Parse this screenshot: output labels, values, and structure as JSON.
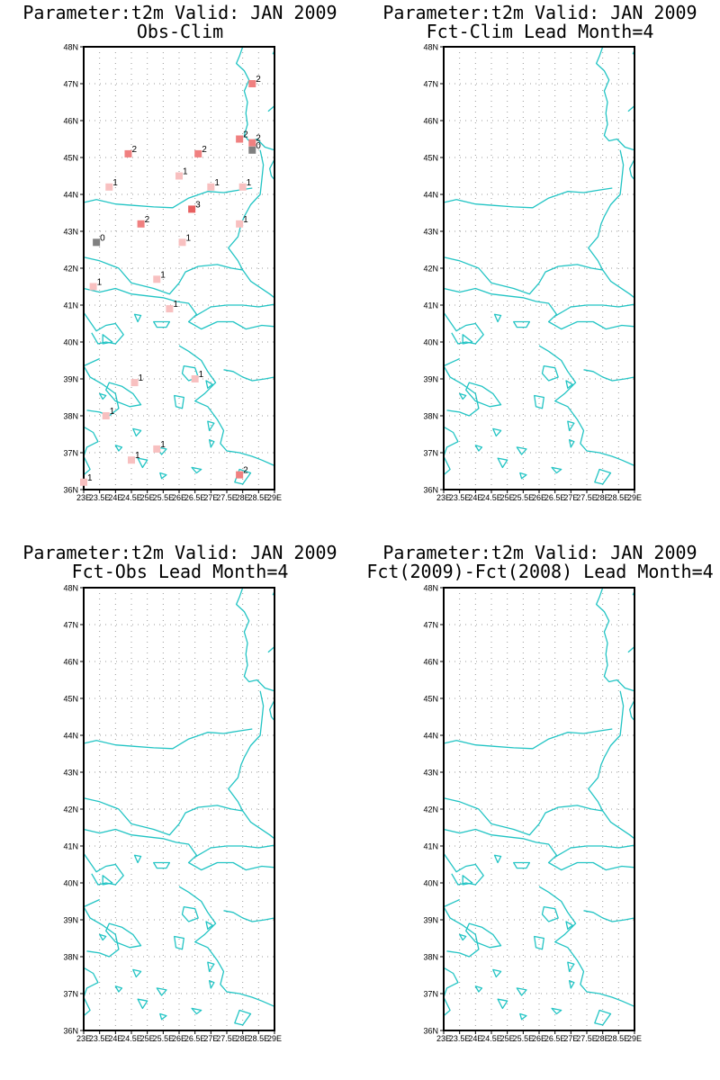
{
  "panels": [
    {
      "title_line1": "Parameter:t2m Valid: JAN 2009",
      "title_line2": "Obs-Clim"
    },
    {
      "title_line1": "Parameter:t2m Valid: JAN 2009",
      "title_line2": "Fct-Clim Lead Month=4"
    },
    {
      "title_line1": "Parameter:t2m Valid: JAN 2009",
      "title_line2": "Fct-Obs Lead Month=4"
    },
    {
      "title_line1": "Parameter:t2m Valid: JAN 2009",
      "title_line2": "Fct(2009)-Fct(2008) Lead Month=4"
    }
  ],
  "axes": {
    "lat_labels": [
      "36N",
      "37N",
      "38N",
      "39N",
      "40N",
      "41N",
      "42N",
      "43N",
      "44N",
      "45N",
      "46N",
      "47N",
      "48N"
    ],
    "lon_labels": [
      "23E",
      "23.5E",
      "24E",
      "24.5E",
      "25E",
      "25.5E",
      "26E",
      "26.5E",
      "27E",
      "27.5E",
      "28E",
      "28.5E",
      "29E"
    ],
    "lat_range": [
      36,
      48
    ],
    "lon_range": [
      23,
      29
    ]
  },
  "colors": {
    "coastline": "#22c4c4",
    "grid": "#9a9a9a",
    "zero": "#808080",
    "one": "#f8c0c0",
    "two": "#f08080",
    "three": "#e86060"
  },
  "stations": [
    {
      "lon": 28.3,
      "lat": 47.0,
      "value": "2"
    },
    {
      "lon": 27.9,
      "lat": 45.5,
      "value": "2"
    },
    {
      "lon": 28.3,
      "lat": 45.4,
      "value": "2"
    },
    {
      "lon": 28.3,
      "lat": 45.2,
      "value": "0"
    },
    {
      "lon": 24.4,
      "lat": 45.1,
      "value": "2"
    },
    {
      "lon": 26.6,
      "lat": 45.1,
      "value": "2"
    },
    {
      "lon": 26.0,
      "lat": 44.5,
      "value": "1"
    },
    {
      "lon": 23.8,
      "lat": 44.2,
      "value": "1"
    },
    {
      "lon": 27.0,
      "lat": 44.2,
      "value": "1"
    },
    {
      "lon": 28.0,
      "lat": 44.2,
      "value": "1"
    },
    {
      "lon": 26.4,
      "lat": 43.6,
      "value": "3"
    },
    {
      "lon": 24.8,
      "lat": 43.2,
      "value": "2"
    },
    {
      "lon": 27.9,
      "lat": 43.2,
      "value": "1"
    },
    {
      "lon": 23.4,
      "lat": 42.7,
      "value": "0"
    },
    {
      "lon": 26.1,
      "lat": 42.7,
      "value": "1"
    },
    {
      "lon": 25.3,
      "lat": 41.7,
      "value": "1"
    },
    {
      "lon": 23.3,
      "lat": 41.5,
      "value": "1"
    },
    {
      "lon": 25.7,
      "lat": 40.9,
      "value": "1"
    },
    {
      "lon": 26.5,
      "lat": 39.0,
      "value": "1"
    },
    {
      "lon": 24.6,
      "lat": 38.9,
      "value": "1"
    },
    {
      "lon": 23.7,
      "lat": 38.0,
      "value": "1"
    },
    {
      "lon": 25.3,
      "lat": 37.1,
      "value": "1"
    },
    {
      "lon": 24.5,
      "lat": 36.8,
      "value": "1"
    },
    {
      "lon": 27.9,
      "lat": 36.4,
      "value": "2"
    },
    {
      "lon": 23.0,
      "lat": 36.2,
      "value": "1"
    }
  ]
}
